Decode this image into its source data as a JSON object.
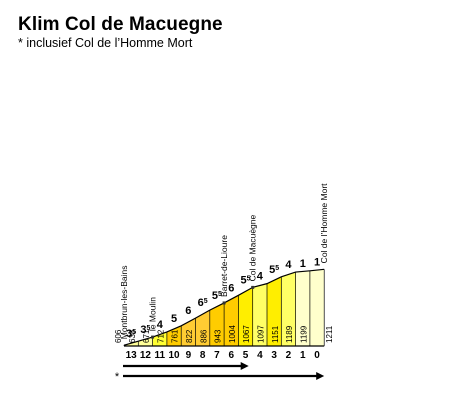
{
  "title": "Klim Col de Macuegne",
  "subtitle": "* inclusief Col de l’Homme Mort",
  "chart_data": {
    "type": "area",
    "title": "Klim Col de Macuegne",
    "subtitle": "* inclusief Col de l’Homme Mort",
    "x_km_remaining": [
      13,
      12,
      11,
      10,
      9,
      8,
      7,
      6,
      5,
      4,
      3,
      2,
      1,
      0
    ],
    "elevations": [
      "606",
      "638",
      "671",
      "712",
      "761",
      "822",
      "886",
      "943",
      "1004",
      "1067",
      "1097",
      "1151",
      "1189",
      "1199",
      "1211"
    ],
    "elevation_values": [
      606,
      638,
      671,
      712,
      761,
      822,
      886,
      943,
      1004,
      1067,
      1097,
      1151,
      1189,
      1199,
      1211
    ],
    "grades": [
      {
        "main": "3",
        "sup": "5"
      },
      {
        "main": "3",
        "sup": "5"
      },
      {
        "main": "4",
        "sup": ""
      },
      {
        "main": "5",
        "sup": ""
      },
      {
        "main": "6",
        "sup": ""
      },
      {
        "main": "6",
        "sup": "5"
      },
      {
        "main": "5",
        "sup": "5"
      },
      {
        "main": "6",
        "sup": ""
      },
      {
        "main": "5",
        "sup": "5"
      },
      {
        "main": "4",
        "sup": ""
      },
      {
        "main": "5",
        "sup": "5"
      },
      {
        "main": "4",
        "sup": ""
      },
      {
        "main": "1",
        "sup": ""
      },
      {
        "main": "1",
        "sup": ""
      }
    ],
    "segment_colors": [
      "#ffff99",
      "#ffff99",
      "#ffff33",
      "#ffcc00",
      "#ffcc33",
      "#ffcc33",
      "#ffcc00",
      "#ffcc00",
      "#ffee00",
      "#ffff66",
      "#ffee00",
      "#ffff66",
      "#ffffcc",
      "#ffffcc"
    ],
    "places": [
      {
        "name": "Montbrun-les-Bains",
        "index": 0
      },
      {
        "name": "le Moulin",
        "index": 2
      },
      {
        "name": "Barret-de-Lioure",
        "index": 7
      },
      {
        "name": "Col de Macuègne",
        "index": 9
      },
      {
        "name": "Col de l’Homme Mort",
        "index": 14
      }
    ],
    "route_markers": [
      {
        "label": "",
        "to_index": 9
      },
      {
        "label": "*",
        "to_index": 14
      }
    ]
  }
}
